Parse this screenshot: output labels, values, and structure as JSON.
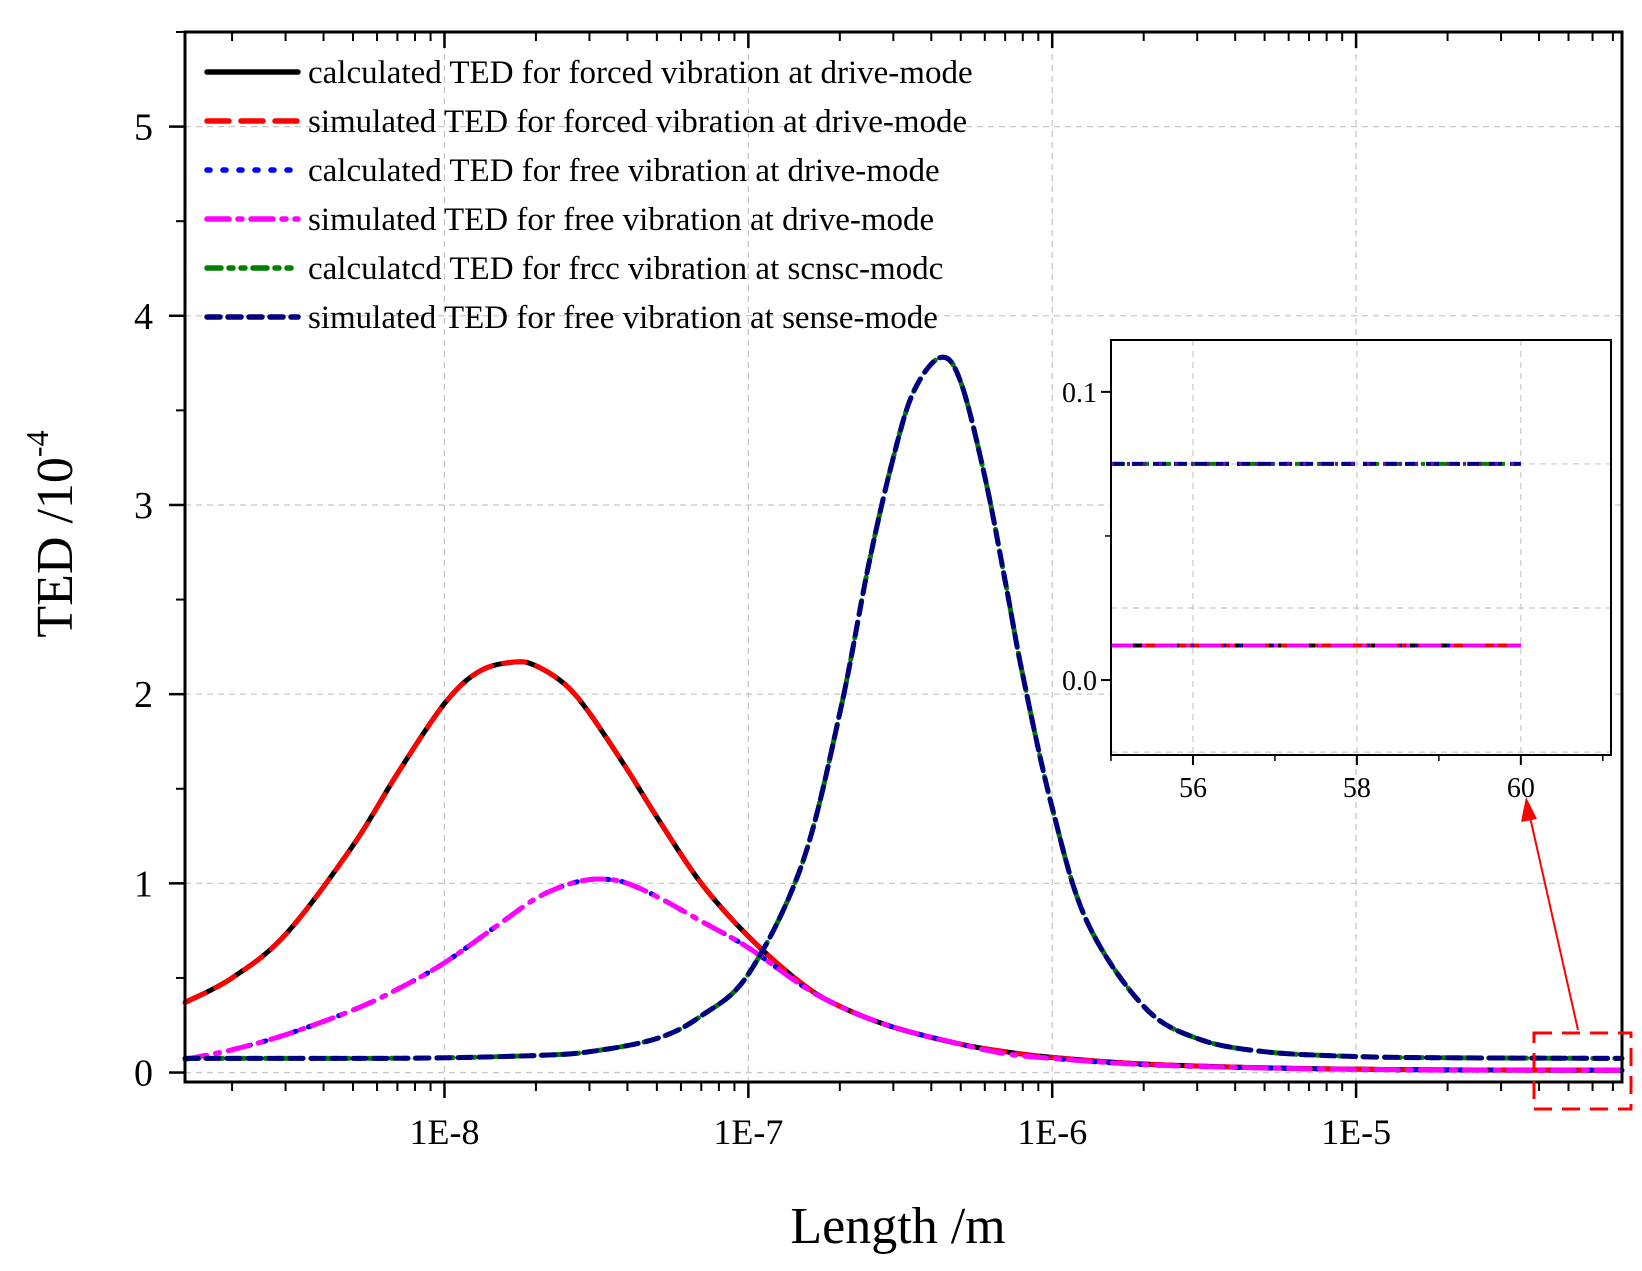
{
  "chart_data": [
    {
      "type": "line",
      "xscale": "log",
      "xlabel": "Length /m",
      "ylabel": "TED /10",
      "ylabel_superscript": "-4",
      "xlim": [
        1.4e-09,
        7.5e-05
      ],
      "ylim": [
        -0.05,
        5.5
      ],
      "xticks": [
        1e-08,
        1e-07,
        1e-06,
        1e-05
      ],
      "xtick_labels": [
        "1E-8",
        "1E-7",
        "1E-6",
        "1E-5"
      ],
      "yticks": [
        0,
        1,
        2,
        3,
        4,
        5
      ],
      "ytick_labels": [
        "0",
        "1",
        "2",
        "3",
        "4",
        "5"
      ],
      "grid": true,
      "legend_position": "top-left",
      "series": [
        {
          "name": "calculated TED for forced vibration at drive-mode",
          "color": "#000000",
          "style": "solid",
          "x": [
            1.4e-09,
            2e-09,
            3e-09,
            5e-09,
            7e-09,
            1e-08,
            1.3e-08,
            1.7e-08,
            2e-08,
            2.5e-08,
            3e-08,
            4e-08,
            5e-08,
            7e-08,
            1e-07,
            1.5e-07,
            2e-07,
            3e-07,
            5e-07,
            7e-07,
            1e-06,
            2e-06,
            5e-06,
            1e-05,
            2e-05,
            7.5e-05
          ],
          "y": [
            0.37,
            0.5,
            0.73,
            1.2,
            1.58,
            1.95,
            2.12,
            2.17,
            2.15,
            2.05,
            1.9,
            1.6,
            1.35,
            1.0,
            0.72,
            0.47,
            0.35,
            0.24,
            0.15,
            0.11,
            0.08,
            0.045,
            0.025,
            0.018,
            0.014,
            0.012
          ]
        },
        {
          "name": "simulated TED for forced vibration at drive-mode",
          "color": "#ff0000",
          "style": "dash",
          "x": [
            1.4e-09,
            2e-09,
            3e-09,
            5e-09,
            7e-09,
            1e-08,
            1.3e-08,
            1.7e-08,
            2e-08,
            2.5e-08,
            3e-08,
            4e-08,
            5e-08,
            7e-08,
            1e-07,
            1.5e-07,
            2e-07,
            3e-07,
            5e-07,
            7e-07,
            1e-06,
            2e-06,
            5e-06,
            1e-05,
            2e-05,
            7.5e-05
          ],
          "y": [
            0.37,
            0.5,
            0.73,
            1.2,
            1.58,
            1.95,
            2.12,
            2.17,
            2.15,
            2.05,
            1.9,
            1.6,
            1.35,
            1.0,
            0.72,
            0.47,
            0.35,
            0.24,
            0.15,
            0.11,
            0.08,
            0.045,
            0.025,
            0.018,
            0.014,
            0.012
          ]
        },
        {
          "name": "calculated TED for free vibration at drive-mode",
          "color": "#0000ff",
          "style": "dot",
          "x": [
            1.4e-09,
            2e-09,
            3e-09,
            5e-09,
            7e-09,
            1e-08,
            1.5e-08,
            2e-08,
            2.5e-08,
            3e-08,
            3.5e-08,
            4e-08,
            5e-08,
            7e-08,
            1e-07,
            1.5e-07,
            2e-07,
            3e-07,
            5e-07,
            7e-07,
            1e-06,
            2e-06,
            5e-06,
            1e-05,
            2e-05,
            7.5e-05
          ],
          "y": [
            0.07,
            0.12,
            0.2,
            0.33,
            0.44,
            0.58,
            0.78,
            0.92,
            0.99,
            1.02,
            1.02,
            1.0,
            0.93,
            0.8,
            0.66,
            0.46,
            0.35,
            0.24,
            0.15,
            0.1,
            0.075,
            0.042,
            0.024,
            0.017,
            0.013,
            0.012
          ]
        },
        {
          "name": "simulated TED for free vibration at drive-mode",
          "color": "#ff00ff",
          "style": "dashdot",
          "x": [
            1.4e-09,
            2e-09,
            3e-09,
            5e-09,
            7e-09,
            1e-08,
            1.5e-08,
            2e-08,
            2.5e-08,
            3e-08,
            3.5e-08,
            4e-08,
            5e-08,
            7e-08,
            1e-07,
            1.5e-07,
            2e-07,
            3e-07,
            5e-07,
            7e-07,
            1e-06,
            2e-06,
            5e-06,
            1e-05,
            2e-05,
            7.5e-05
          ],
          "y": [
            0.07,
            0.12,
            0.2,
            0.33,
            0.44,
            0.58,
            0.78,
            0.92,
            0.99,
            1.02,
            1.02,
            1.0,
            0.93,
            0.8,
            0.66,
            0.46,
            0.35,
            0.24,
            0.15,
            0.1,
            0.075,
            0.042,
            0.024,
            0.017,
            0.013,
            0.012
          ]
        },
        {
          "name": "calculated TED for free vibration at sense-mode",
          "legend_label": "calculatcd TED for frcc vibration at scnsc-modc",
          "color": "#008000",
          "style": "dashdotdot",
          "x": [
            1.4e-09,
            5e-09,
            1e-08,
            2e-08,
            3e-08,
            5e-08,
            7e-08,
            1e-07,
            1.5e-07,
            2e-07,
            2.5e-07,
            3e-07,
            3.5e-07,
            4.3e-07,
            5e-07,
            6e-07,
            7e-07,
            8e-07,
            1e-06,
            1.3e-06,
            2e-06,
            3e-06,
            5e-06,
            1e-05,
            2e-05,
            7.5e-05
          ],
          "y": [
            0.075,
            0.075,
            0.078,
            0.09,
            0.11,
            0.18,
            0.3,
            0.52,
            1.1,
            1.9,
            2.7,
            3.25,
            3.6,
            3.78,
            3.65,
            3.15,
            2.6,
            2.1,
            1.4,
            0.8,
            0.35,
            0.18,
            0.11,
            0.085,
            0.078,
            0.075
          ]
        },
        {
          "name": "simulated TED for free vibration at sense-mode",
          "color": "#000080",
          "style": "shortdash",
          "x": [
            1.4e-09,
            5e-09,
            1e-08,
            2e-08,
            3e-08,
            5e-08,
            7e-08,
            1e-07,
            1.5e-07,
            2e-07,
            2.5e-07,
            3e-07,
            3.5e-07,
            4.3e-07,
            5e-07,
            6e-07,
            7e-07,
            8e-07,
            1e-06,
            1.3e-06,
            2e-06,
            3e-06,
            5e-06,
            1e-05,
            2e-05,
            7.5e-05
          ],
          "y": [
            0.075,
            0.075,
            0.078,
            0.09,
            0.11,
            0.18,
            0.3,
            0.52,
            1.1,
            1.9,
            2.7,
            3.25,
            3.6,
            3.78,
            3.65,
            3.15,
            2.6,
            2.1,
            1.4,
            0.8,
            0.35,
            0.18,
            0.11,
            0.085,
            0.078,
            0.075
          ]
        }
      ]
    },
    {
      "type": "line",
      "role": "inset",
      "xlim": [
        55,
        61.1
      ],
      "ylim": [
        -0.026,
        0.118
      ],
      "xticks": [
        56,
        58,
        60
      ],
      "xtick_labels": [
        "56",
        "58",
        "60"
      ],
      "yticks": [
        0.0,
        0.1
      ],
      "ytick_labels": [
        "0.0",
        "0.1"
      ],
      "grid": true,
      "series": [
        {
          "color": "#008000",
          "style": "dashdotdot",
          "x": [
            55,
            60
          ],
          "y": [
            0.075,
            0.075
          ]
        },
        {
          "color": "#000080",
          "style": "shortdash",
          "x": [
            55,
            60
          ],
          "y": [
            0.075,
            0.075
          ]
        },
        {
          "color": "#8000c0",
          "style": "dot",
          "x": [
            55,
            60
          ],
          "y": [
            0.075,
            0.075
          ]
        },
        {
          "color": "#000000",
          "style": "solid",
          "x": [
            55,
            60
          ],
          "y": [
            0.012,
            0.012
          ]
        },
        {
          "color": "#ff0000",
          "style": "dash",
          "x": [
            55,
            60
          ],
          "y": [
            0.012,
            0.012
          ]
        },
        {
          "color": "#0000ff",
          "style": "dot",
          "x": [
            55,
            60
          ],
          "y": [
            0.012,
            0.012
          ]
        },
        {
          "color": "#ff00ff",
          "style": "dashdot",
          "x": [
            55,
            60
          ],
          "y": [
            0.012,
            0.012
          ]
        }
      ]
    }
  ]
}
